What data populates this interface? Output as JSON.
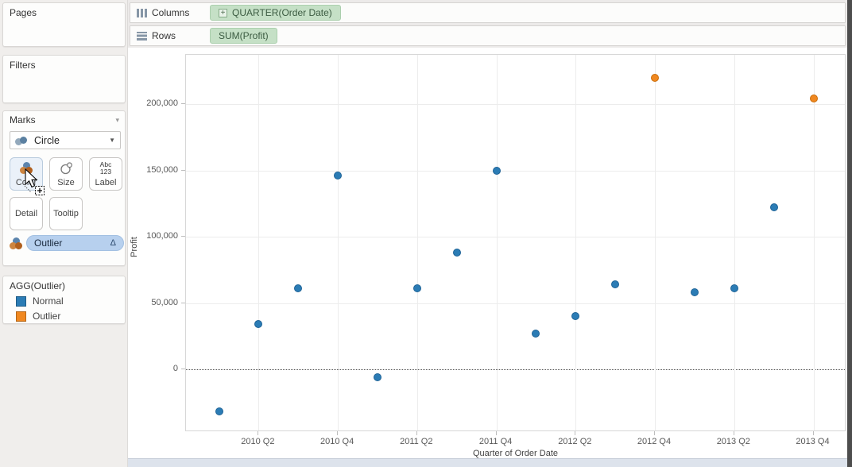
{
  "sidebar": {
    "pages_label": "Pages",
    "filters_label": "Filters",
    "marks": {
      "header": "Marks",
      "mark_type": "Circle",
      "color_button": "Color",
      "size_button": "Size",
      "label_button": "Label",
      "label_icon_line1": "Abc",
      "label_icon_line2": "123",
      "detail_button": "Detail",
      "tooltip_button": "Tooltip",
      "encoding_pill": "Outlier",
      "encoding_pill_indicator": "Δ"
    },
    "legend": {
      "title": "AGG(Outlier)",
      "items": [
        {
          "label": "Normal",
          "color": "#2b7cb5"
        },
        {
          "label": "Outlier",
          "color": "#f08820"
        }
      ]
    }
  },
  "shelves": {
    "columns_label": "Columns",
    "columns_pill": "QUARTER(Order Date)",
    "columns_pill_expand": "+",
    "rows_label": "Rows",
    "rows_pill": "SUM(Profit)"
  },
  "chart_data": {
    "type": "scatter",
    "title": "",
    "xlabel": "Quarter of Order Date",
    "ylabel": "Profit",
    "categories": [
      "2010 Q1",
      "2010 Q2",
      "2010 Q3",
      "2010 Q4",
      "2011 Q1",
      "2011 Q2",
      "2011 Q3",
      "2011 Q4",
      "2012 Q1",
      "2012 Q2",
      "2012 Q3",
      "2012 Q4",
      "2013 Q1",
      "2013 Q2",
      "2013 Q3",
      "2013 Q4"
    ],
    "values": [
      -32000,
      34000,
      61000,
      146000,
      -6000,
      61000,
      88000,
      150000,
      27000,
      40000,
      64000,
      220000,
      58000,
      61000,
      122000,
      204000
    ],
    "point_series": [
      "Normal",
      "Normal",
      "Normal",
      "Normal",
      "Normal",
      "Normal",
      "Normal",
      "Normal",
      "Normal",
      "Normal",
      "Normal",
      "Outlier",
      "Normal",
      "Normal",
      "Normal",
      "Outlier"
    ],
    "series_colors": {
      "Normal": {
        "fill": "#2b7cb5",
        "stroke": "#1d6296"
      },
      "Outlier": {
        "fill": "#f08820",
        "stroke": "#c96d0b"
      }
    },
    "x_tick_labels": [
      "2010 Q2",
      "2010 Q4",
      "2011 Q2",
      "2011 Q4",
      "2012 Q2",
      "2012 Q4",
      "2013 Q2",
      "2013 Q4"
    ],
    "y_ticks": [
      200000,
      150000,
      100000,
      50000,
      0
    ],
    "y_tick_labels": [
      "200,000",
      "150,000",
      "100,000",
      "50,000",
      "0"
    ],
    "ylim": [
      -47300,
      237100
    ],
    "grid": true,
    "zero_line": "dotted",
    "legend_position": "left-sidebar"
  }
}
